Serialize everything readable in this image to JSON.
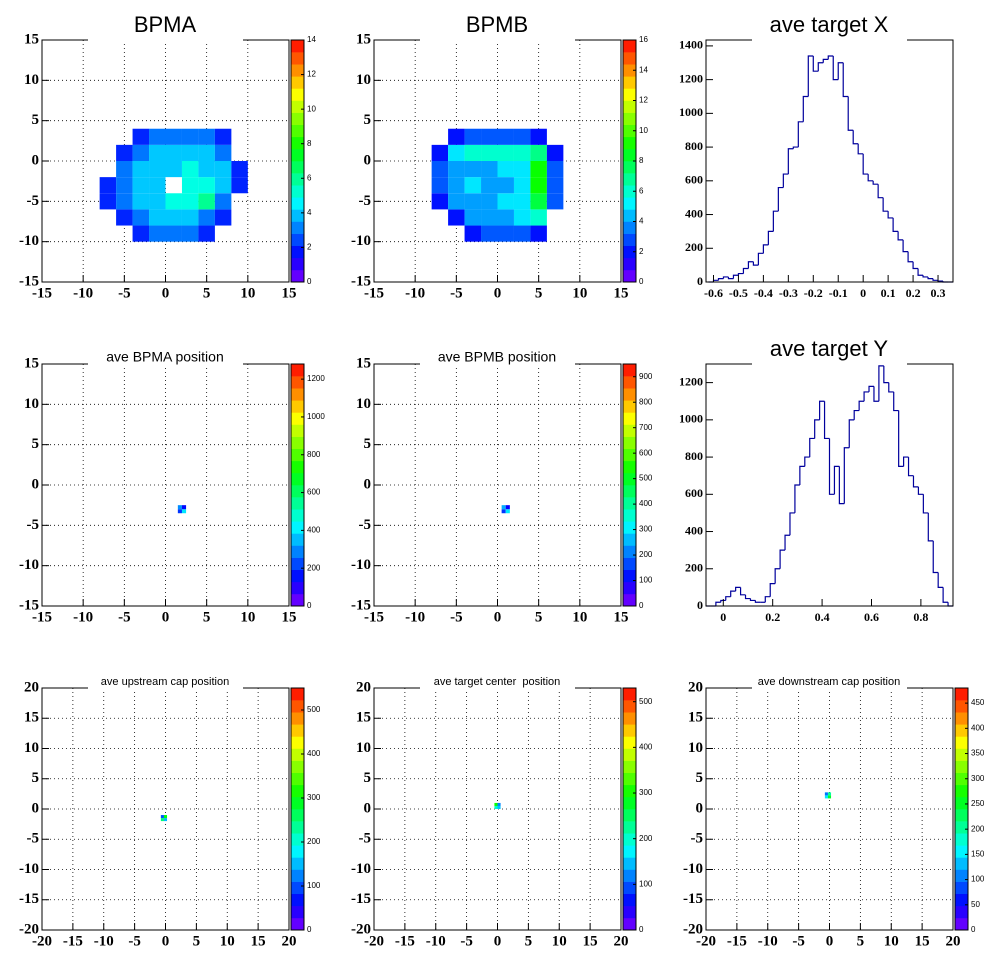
{
  "chart_data": [
    {
      "type": "heatmap",
      "title": "BPMA",
      "xlim": [
        -15,
        15
      ],
      "ylim": [
        -15,
        15
      ],
      "xticks": [
        -15,
        -10,
        -5,
        0,
        5,
        10,
        15
      ],
      "yticks": [
        -15,
        -10,
        -5,
        0,
        5,
        10,
        15
      ],
      "grid": true,
      "xbins": [
        -8,
        -6,
        -4,
        -2,
        0,
        2,
        4,
        6,
        8,
        10
      ],
      "ybins": [
        -10,
        -8,
        -6,
        -4,
        -2,
        0,
        2,
        4
      ],
      "z": [
        [
          null,
          null,
          2,
          3,
          3,
          3,
          2,
          null,
          null
        ],
        [
          null,
          2,
          3,
          4,
          4,
          4,
          3,
          2,
          null
        ],
        [
          2,
          3,
          4,
          4,
          5,
          5,
          6,
          3,
          null
        ],
        [
          2,
          3,
          4,
          4,
          null,
          5,
          5,
          4,
          2
        ],
        [
          null,
          3,
          4,
          4,
          4,
          5,
          4,
          4,
          2
        ],
        [
          null,
          2,
          3,
          4,
          4,
          4,
          4,
          3,
          null
        ],
        [
          null,
          null,
          2,
          3,
          3,
          3,
          3,
          2,
          null
        ]
      ],
      "zlim": [
        0,
        14
      ],
      "zticks": [
        0,
        2,
        4,
        6,
        8,
        10,
        12,
        14
      ]
    },
    {
      "type": "heatmap",
      "title": "BPMB",
      "xlim": [
        -15,
        15
      ],
      "ylim": [
        -15,
        15
      ],
      "xticks": [
        -15,
        -10,
        -5,
        0,
        5,
        10,
        15
      ],
      "yticks": [
        -15,
        -10,
        -5,
        0,
        5,
        10,
        15
      ],
      "grid": true,
      "xbins": [
        -8,
        -6,
        -4,
        -2,
        0,
        2,
        4,
        6,
        8
      ],
      "ybins": [
        -10,
        -8,
        -6,
        -4,
        -2,
        0,
        2,
        4
      ],
      "z": [
        [
          null,
          null,
          2,
          3,
          3,
          3,
          2,
          null
        ],
        [
          null,
          2,
          4,
          4,
          4,
          5,
          6,
          null
        ],
        [
          2,
          4,
          4,
          4,
          5,
          5,
          8,
          3
        ],
        [
          3,
          4,
          5,
          4,
          4,
          5,
          9,
          3
        ],
        [
          3,
          4,
          4,
          4,
          5,
          5,
          9,
          3
        ],
        [
          2,
          5,
          6,
          6,
          6,
          6,
          7,
          2
        ],
        [
          null,
          2,
          3,
          3,
          3,
          3,
          2,
          null
        ]
      ],
      "zlim": [
        0,
        16
      ],
      "zticks": [
        0,
        2,
        4,
        6,
        8,
        10,
        12,
        14,
        16
      ]
    },
    {
      "type": "histogram",
      "title": "ave target X",
      "color": "#00009c",
      "xlim": [
        -0.63,
        0.36
      ],
      "ylim": [
        0,
        1435
      ],
      "xticks": [
        -0.6,
        -0.5,
        -0.4,
        -0.3,
        -0.2,
        -0.1,
        0,
        0.1,
        0.2,
        0.3
      ],
      "yticks": [
        0,
        200,
        400,
        600,
        800,
        1000,
        1200,
        1400
      ],
      "grid": false,
      "bins": [
        -0.62,
        -0.6,
        -0.58,
        -0.56,
        -0.54,
        -0.52,
        -0.5,
        -0.48,
        -0.46,
        -0.44,
        -0.42,
        -0.4,
        -0.38,
        -0.36,
        -0.34,
        -0.32,
        -0.3,
        -0.28,
        -0.26,
        -0.24,
        -0.22,
        -0.2,
        -0.18,
        -0.16,
        -0.14,
        -0.12,
        -0.1,
        -0.08,
        -0.06,
        -0.04,
        -0.02,
        0,
        0.02,
        0.04,
        0.06,
        0.08,
        0.1,
        0.12,
        0.14,
        0.16,
        0.18,
        0.2,
        0.22,
        0.24,
        0.26,
        0.28,
        0.3,
        0.32,
        0.34,
        0.36
      ],
      "values": [
        0,
        10,
        20,
        30,
        20,
        40,
        50,
        80,
        120,
        100,
        170,
        220,
        300,
        420,
        560,
        640,
        790,
        800,
        950,
        1100,
        1340,
        1250,
        1300,
        1320,
        1340,
        1200,
        1300,
        1100,
        900,
        820,
        760,
        640,
        600,
        580,
        500,
        420,
        380,
        300,
        250,
        180,
        120,
        80,
        40,
        30,
        20,
        10,
        5,
        0,
        0
      ]
    },
    {
      "type": "heatmap",
      "title": "ave BPMA position",
      "xlim": [
        -15,
        15
      ],
      "ylim": [
        -15,
        15
      ],
      "xticks": [
        -15,
        -10,
        -5,
        0,
        5,
        10,
        15
      ],
      "yticks": [
        -15,
        -10,
        -5,
        0,
        5,
        10,
        15
      ],
      "grid": true,
      "xbins": [
        1.5,
        2,
        2.5
      ],
      "ybins": [
        -3.5,
        -3,
        -2.5
      ],
      "z": [
        [
          200,
          400
        ],
        [
          300,
          150
        ]
      ],
      "zlim": [
        0,
        1280
      ],
      "zticks": [
        0,
        200,
        400,
        600,
        800,
        1000,
        1200
      ]
    },
    {
      "type": "heatmap",
      "title": "ave BPMB position",
      "xlim": [
        -15,
        15
      ],
      "ylim": [
        -15,
        15
      ],
      "xticks": [
        -15,
        -10,
        -5,
        0,
        5,
        10,
        15
      ],
      "yticks": [
        -15,
        -10,
        -5,
        0,
        5,
        10,
        15
      ],
      "grid": true,
      "xbins": [
        0.5,
        1,
        1.5
      ],
      "ybins": [
        -3.5,
        -3,
        -2.5
      ],
      "z": [
        [
          150,
          300
        ],
        [
          250,
          100
        ]
      ],
      "zlim": [
        0,
        950
      ],
      "zticks": [
        0,
        100,
        200,
        300,
        400,
        500,
        600,
        700,
        800,
        900
      ]
    },
    {
      "type": "histogram",
      "title": "ave target Y",
      "color": "#00009c",
      "xlim": [
        -0.07,
        0.93
      ],
      "ylim": [
        0,
        1300
      ],
      "xticks": [
        0,
        0.2,
        0.4,
        0.6,
        0.8
      ],
      "yticks": [
        0,
        200,
        400,
        600,
        800,
        1000,
        1200
      ],
      "grid": false,
      "bins": [
        -0.07,
        -0.05,
        -0.03,
        -0.01,
        0.01,
        0.03,
        0.05,
        0.07,
        0.09,
        0.11,
        0.13,
        0.15,
        0.17,
        0.19,
        0.21,
        0.23,
        0.25,
        0.27,
        0.29,
        0.31,
        0.33,
        0.35,
        0.37,
        0.39,
        0.41,
        0.43,
        0.45,
        0.47,
        0.49,
        0.51,
        0.53,
        0.55,
        0.57,
        0.59,
        0.61,
        0.63,
        0.65,
        0.67,
        0.69,
        0.71,
        0.73,
        0.75,
        0.77,
        0.79,
        0.81,
        0.83,
        0.85,
        0.87,
        0.89,
        0.91,
        0.93
      ],
      "values": [
        0,
        0,
        20,
        30,
        50,
        80,
        100,
        60,
        40,
        30,
        20,
        20,
        50,
        120,
        200,
        300,
        380,
        500,
        650,
        750,
        800,
        900,
        1000,
        1100,
        900,
        600,
        750,
        550,
        850,
        1000,
        1050,
        1100,
        1150,
        1180,
        1100,
        1290,
        1200,
        1150,
        1050,
        750,
        800,
        700,
        640,
        600,
        500,
        350,
        180,
        100,
        20,
        0
      ]
    },
    {
      "type": "heatmap",
      "title": "ave upstream cap position",
      "xlim": [
        -20,
        20
      ],
      "ylim": [
        -20,
        20
      ],
      "xticks": [
        -20,
        -15,
        -10,
        -5,
        0,
        5,
        10,
        15,
        20
      ],
      "yticks": [
        -20,
        -15,
        -10,
        -5,
        0,
        5,
        10,
        15,
        20
      ],
      "grid": true,
      "xbins": [
        -0.75,
        -0.25,
        0.25
      ],
      "ybins": [
        -2,
        -1.5,
        -1
      ],
      "z": [
        [
          250,
          150
        ],
        [
          100,
          300
        ]
      ],
      "zlim": [
        0,
        550
      ],
      "zticks": [
        0,
        100,
        200,
        300,
        400,
        500
      ]
    },
    {
      "type": "heatmap",
      "title": "ave target center  position",
      "xlim": [
        -20,
        20
      ],
      "ylim": [
        -20,
        20
      ],
      "xticks": [
        -20,
        -15,
        -10,
        -5,
        0,
        5,
        10,
        15,
        20
      ],
      "yticks": [
        -20,
        -15,
        -10,
        -5,
        0,
        5,
        10,
        15,
        20
      ],
      "grid": true,
      "xbins": [
        -0.5,
        0,
        0.5
      ],
      "ybins": [
        0,
        0.5,
        1
      ],
      "z": [
        [
          200,
          150
        ],
        [
          300,
          120
        ]
      ],
      "zlim": [
        0,
        530
      ],
      "zticks": [
        0,
        100,
        200,
        300,
        400,
        500
      ]
    },
    {
      "type": "heatmap",
      "title": "ave downstream cap position",
      "xlim": [
        -20,
        20
      ],
      "ylim": [
        -20,
        20
      ],
      "xticks": [
        -20,
        -15,
        -10,
        -5,
        0,
        5,
        10,
        15,
        20
      ],
      "yticks": [
        -20,
        -15,
        -10,
        -5,
        0,
        5,
        10,
        15,
        20
      ],
      "grid": true,
      "xbins": [
        -0.75,
        -0.25,
        0.25
      ],
      "ybins": [
        1.75,
        2.25,
        2.75
      ],
      "z": [
        [
          150,
          250
        ],
        [
          100,
          200
        ]
      ],
      "zlim": [
        0,
        480
      ],
      "zticks": [
        0,
        50,
        100,
        150,
        200,
        250,
        300,
        350,
        400,
        450
      ]
    }
  ]
}
